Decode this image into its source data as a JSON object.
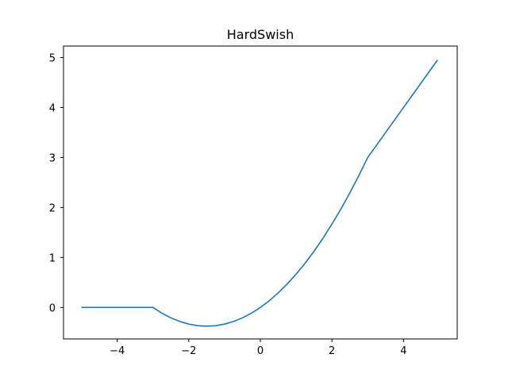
{
  "chart_data": {
    "type": "line",
    "title": "HardSwish",
    "xlabel": "",
    "ylabel": "",
    "xlim": [
      -5.5,
      5.5
    ],
    "ylim": [
      -0.63,
      5.23
    ],
    "grid": false,
    "x_ticks": [
      -4,
      -2,
      0,
      2,
      4
    ],
    "x_tick_labels": [
      "−4",
      "−2",
      "0",
      "2",
      "4"
    ],
    "y_ticks": [
      0,
      1,
      2,
      3,
      4,
      5
    ],
    "y_tick_labels": [
      "0",
      "1",
      "2",
      "3",
      "4",
      "5"
    ],
    "series": [
      {
        "color": "#1f77b4",
        "x": [
          -5.0,
          -4.0,
          -3.0,
          -2.75,
          -2.5,
          -2.25,
          -2.0,
          -1.75,
          -1.5,
          -1.25,
          -1.0,
          -0.75,
          -0.5,
          -0.25,
          0.0,
          0.25,
          0.5,
          0.75,
          1.0,
          1.25,
          1.5,
          1.75,
          2.0,
          2.25,
          2.5,
          2.75,
          3.0,
          4.0,
          4.95
        ],
        "y": [
          0.0,
          0.0,
          0.0,
          -0.115,
          -0.208,
          -0.281,
          -0.333,
          -0.365,
          -0.375,
          -0.365,
          -0.333,
          -0.281,
          -0.208,
          -0.115,
          0.0,
          0.135,
          0.292,
          0.469,
          0.667,
          0.885,
          1.125,
          1.385,
          1.667,
          1.969,
          2.292,
          2.635,
          3.0,
          4.0,
          4.95
        ]
      }
    ]
  }
}
